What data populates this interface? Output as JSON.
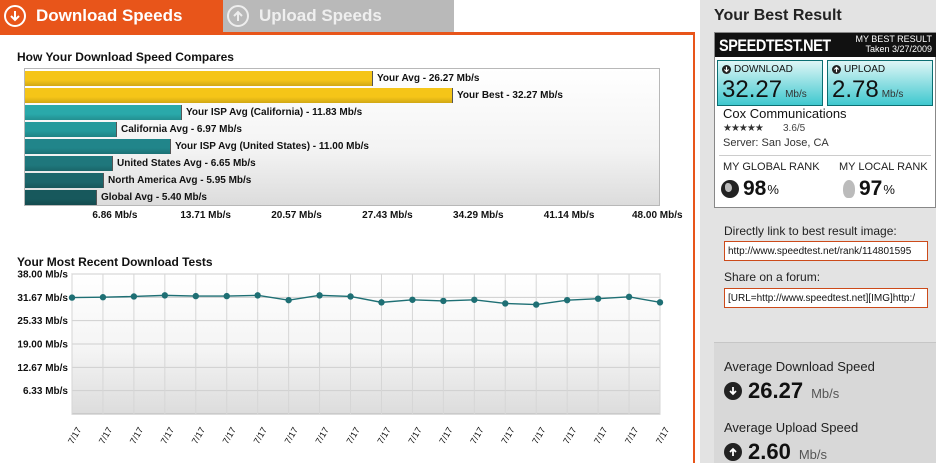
{
  "tabs": {
    "download_label": "Download Speeds",
    "upload_label": "Upload Speeds"
  },
  "compare": {
    "title": "How Your Download Speed Compares"
  },
  "recent": {
    "title": "Your Most Recent Download Tests"
  },
  "chart_data": [
    {
      "type": "bar",
      "orientation": "horizontal",
      "title": "How Your Download Speed Compares",
      "unit": "Mb/s",
      "xlim": [
        0,
        48.0
      ],
      "ticks": [
        "6.86 Mb/s",
        "13.71 Mb/s",
        "20.57 Mb/s",
        "27.43 Mb/s",
        "34.29 Mb/s",
        "41.14 Mb/s",
        "48.00 Mb/s"
      ],
      "tick_values": [
        6.86,
        13.71,
        20.57,
        27.43,
        34.29,
        41.14,
        48.0
      ],
      "bars": [
        {
          "label": "Your Avg - 26.27 Mb/s",
          "value": 26.27,
          "color": "#f5c518"
        },
        {
          "label": "Your Best - 32.27 Mb/s",
          "value": 32.27,
          "color": "#f5c518"
        },
        {
          "label": "Your ISP Avg (California) - 11.83 Mb/s",
          "value": 11.83,
          "color": "#2aa9aa"
        },
        {
          "label": "California Avg - 6.97 Mb/s",
          "value": 6.97,
          "color": "#249a9c"
        },
        {
          "label": "Your ISP Avg (United States) - 11.00 Mb/s",
          "value": 11.0,
          "color": "#21858a"
        },
        {
          "label": "United States Avg - 6.65 Mb/s",
          "value": 6.65,
          "color": "#1f777c"
        },
        {
          "label": "North America Avg - 5.95 Mb/s",
          "value": 5.95,
          "color": "#1c666b"
        },
        {
          "label": "Global Avg - 5.40 Mb/s",
          "value": 5.4,
          "color": "#17585c"
        }
      ]
    },
    {
      "type": "line",
      "title": "Your Most Recent Download Tests",
      "unit": "Mb/s",
      "ylim": [
        0,
        38.0
      ],
      "yticks": [
        "38.00 Mb/s",
        "31.67 Mb/s",
        "25.33 Mb/s",
        "19.00 Mb/s",
        "12.67 Mb/s",
        "6.33 Mb/s"
      ],
      "ytick_values": [
        38.0,
        31.67,
        25.33,
        19.0,
        12.67,
        6.33
      ],
      "categories": [
        "7/17",
        "7/17",
        "7/17",
        "7/17",
        "7/17",
        "7/17",
        "7/17",
        "7/17",
        "7/17",
        "7/17",
        "7/17",
        "7/17",
        "7/17",
        "7/17",
        "7/17",
        "7/17",
        "7/17",
        "7/17",
        "7/17",
        "7/17"
      ],
      "values": [
        31.6,
        31.7,
        31.9,
        32.2,
        32.0,
        32.0,
        32.2,
        30.9,
        32.2,
        31.9,
        30.3,
        31.0,
        30.7,
        31.0,
        30.0,
        29.7,
        30.9,
        31.3,
        31.8,
        30.3
      ],
      "line_color": "#1e6f74",
      "grid": true
    }
  ],
  "best": {
    "title": "Your Best Result",
    "logo": "SPEEDTEST.NET",
    "my_best": "MY BEST RESULT",
    "taken": "Taken 3/27/2009",
    "download_label": "DOWNLOAD",
    "download_value": "32.27",
    "upload_label": "UPLOAD",
    "upload_value": "2.78",
    "unit": "Mb/s",
    "isp": "Cox Communications",
    "stars": "★★★★★",
    "rating": "3.6/5",
    "server": "Server: San Jose, CA",
    "global_rank_label": "MY GLOBAL RANK",
    "global_rank": "98",
    "local_rank_label": "MY LOCAL RANK",
    "local_rank": "97",
    "pct": "%"
  },
  "links": {
    "image_label": "Directly link to best result image:",
    "image_url": "http://www.speedtest.net/rank/114801595",
    "forum_label": "Share on a forum:",
    "forum_code": "[URL=http://www.speedtest.net][IMG]http:/"
  },
  "averages": {
    "download_label": "Average Download Speed",
    "download_value": "26.27",
    "upload_label": "Average Upload Speed",
    "upload_value": "2.60",
    "unit": "Mb/s"
  }
}
